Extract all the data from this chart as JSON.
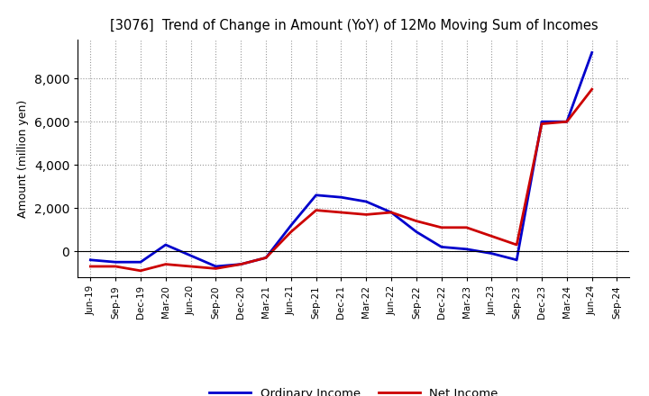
{
  "title": "[3076]  Trend of Change in Amount (YoY) of 12Mo Moving Sum of Incomes",
  "ylabel": "Amount (million yen)",
  "x_labels": [
    "Jun-19",
    "Sep-19",
    "Dec-19",
    "Mar-20",
    "Jun-20",
    "Sep-20",
    "Dec-20",
    "Mar-21",
    "Jun-21",
    "Sep-21",
    "Dec-21",
    "Mar-22",
    "Jun-22",
    "Sep-22",
    "Dec-22",
    "Mar-23",
    "Jun-23",
    "Sep-23",
    "Dec-23",
    "Mar-24",
    "Jun-24",
    "Sep-24"
  ],
  "ordinary_income": [
    -400,
    -500,
    -500,
    300,
    -200,
    -700,
    -600,
    -300,
    1200,
    2600,
    2500,
    2300,
    1800,
    900,
    200,
    100,
    -100,
    -400,
    6000,
    6000,
    9200,
    null
  ],
  "net_income": [
    -700,
    -700,
    -900,
    -600,
    -700,
    -800,
    -600,
    -300,
    900,
    1900,
    1800,
    1700,
    1800,
    1400,
    1100,
    1100,
    700,
    300,
    5900,
    6000,
    7500,
    null
  ],
  "ordinary_income_color": "#0000cc",
  "net_income_color": "#cc0000",
  "background_color": "#ffffff",
  "grid_color": "#999999",
  "ylim": [
    -1200,
    9800
  ],
  "yticks": [
    0,
    2000,
    4000,
    6000,
    8000
  ],
  "legend_ordinary": "Ordinary Income",
  "legend_net": "Net Income",
  "line_width": 2.0
}
